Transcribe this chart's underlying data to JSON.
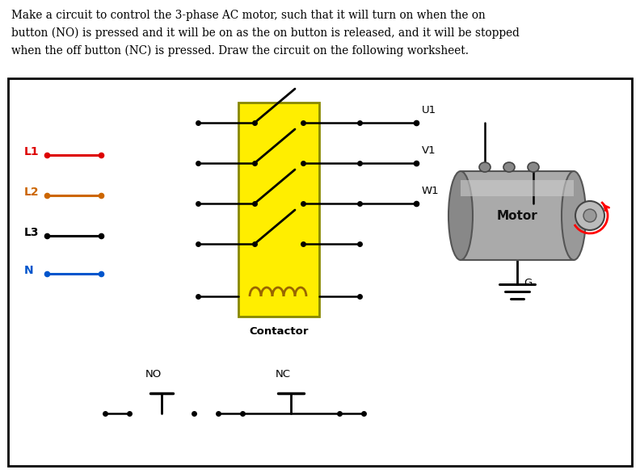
{
  "title_lines": [
    "Make a circuit to control the 3-phase AC motor, such that it will turn on when the on",
    "button (NO) is pressed and it will be on as the on button is released, and it will be stopped",
    "when the off button (NC) is pressed. Draw the circuit on the following worksheet."
  ],
  "L1_color": "#dd0000",
  "L2_color": "#cc6600",
  "L3_color": "#000000",
  "N_color": "#0055cc",
  "contactor_fill": "#ffee00",
  "contactor_stroke": "#888800",
  "contactor_label": "Contactor",
  "motor_body_color": "#999999",
  "motor_label": "Motor",
  "ground_label": "G",
  "U1_label": "U1",
  "V1_label": "V1",
  "W1_label": "W1",
  "NO_label": "NO",
  "NC_label": "NC",
  "bg_color": "#ffffff",
  "coil_color": "#996600",
  "dot_color": "#000000",
  "wire_color": "#000000"
}
